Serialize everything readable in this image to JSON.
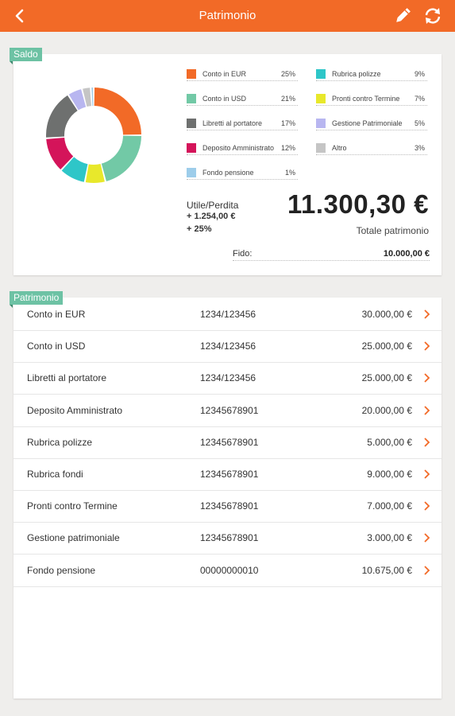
{
  "header": {
    "title": "Patrimonio",
    "back_icon": "chevron-left-icon",
    "edit_icon": "pencil-icon",
    "refresh_icon": "refresh-icon",
    "bar_color": "#f26a27"
  },
  "saldo": {
    "tag": "Saldo",
    "legend": [
      {
        "label": "Conto in EUR",
        "pct": "25%",
        "color": "#f26a27"
      },
      {
        "label": "Conto in USD",
        "pct": "21%",
        "color": "#72c9a6"
      },
      {
        "label": "Libretti al portatore",
        "pct": "17%",
        "color": "#6e706f"
      },
      {
        "label": "Deposito Amministrato",
        "pct": "12%",
        "color": "#d4145a"
      },
      {
        "label": "Fondo pensione",
        "pct": "1%",
        "color": "#9dcdea"
      },
      {
        "label": "Rubrica polizze",
        "pct": "9%",
        "color": "#2ec6c8"
      },
      {
        "label": "Pronti contro Termine",
        "pct": "7%",
        "color": "#e8e82b"
      },
      {
        "label": "Gestione Patrimoniale",
        "pct": "5%",
        "color": "#b8b6f0"
      },
      {
        "label": "Altro",
        "pct": "3%",
        "color": "#c5c5c5"
      }
    ],
    "profit_loss_label": "Utile/Perdita",
    "profit_loss_amount": "+ 1.254,00 €",
    "profit_loss_pct": "+ 25%",
    "total_value": "11.300,30 €",
    "total_label": "Totale patrimonio",
    "fido_label": "Fido:",
    "fido_value": "10.000,00 €"
  },
  "donut": {
    "segments_order": [
      {
        "name": "Conto in EUR",
        "value": 25,
        "color": "#f26a27"
      },
      {
        "name": "Conto in USD",
        "value": 21,
        "color": "#72c9a6"
      },
      {
        "name": "Pronti contro Termine",
        "value": 7,
        "color": "#e8e82b"
      },
      {
        "name": "Rubrica polizze",
        "value": 9,
        "color": "#2ec6c8"
      },
      {
        "name": "Deposito Amministrato",
        "value": 12,
        "color": "#d4145a"
      },
      {
        "name": "Libretti al portatore",
        "value": 17,
        "color": "#6e706f"
      },
      {
        "name": "Gestione Patrimoniale",
        "value": 5,
        "color": "#b8b6f0"
      },
      {
        "name": "Altro",
        "value": 3,
        "color": "#c5c5c5"
      },
      {
        "name": "Fondo pensione",
        "value": 1,
        "color": "#9dcdea"
      }
    ]
  },
  "patrimonio": {
    "tag": "Patrimonio",
    "rows": [
      {
        "name": "Conto in EUR",
        "code": "1234/123456",
        "amount": "30.000,00 €"
      },
      {
        "name": "Conto in USD",
        "code": "1234/123456",
        "amount": "25.000,00 €"
      },
      {
        "name": "Libretti al portatore",
        "code": "1234/123456",
        "amount": "25.000,00 €"
      },
      {
        "name": "Deposito Amministrato",
        "code": "12345678901",
        "amount": "20.000,00 €"
      },
      {
        "name": "Rubrica polizze",
        "code": "12345678901",
        "amount": "5.000,00 €"
      },
      {
        "name": "Rubrica fondi",
        "code": "12345678901",
        "amount": "9.000,00 €"
      },
      {
        "name": "Pronti contro Termine",
        "code": "12345678901",
        "amount": "7.000,00 €"
      },
      {
        "name": "Gestione patrimoniale",
        "code": "12345678901",
        "amount": "3.000,00 €"
      },
      {
        "name": "Fondo pensione",
        "code": "00000000010",
        "amount": "10.675,00 €"
      }
    ],
    "chevron_icon": "chevron-right-icon",
    "chevron_color": "#f26a27"
  }
}
